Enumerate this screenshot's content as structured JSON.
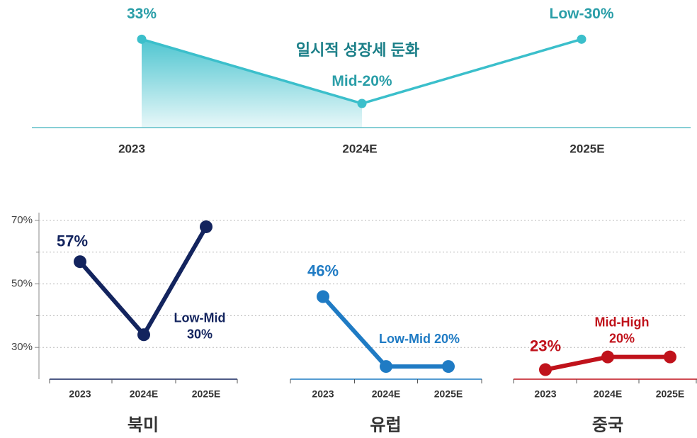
{
  "chart_data": [
    {
      "type": "line",
      "title": "일시적 성장세 둔화",
      "categories": [
        "2023",
        "2024E",
        "2025E"
      ],
      "values": [
        33,
        25,
        33
      ],
      "value_labels": [
        "33%",
        "Mid-20%",
        "Low-30%"
      ],
      "color": "#3bbfcb",
      "ylim": [
        22,
        34
      ]
    },
    {
      "type": "line",
      "title": "북미",
      "categories": [
        "2023",
        "2024E",
        "2025E"
      ],
      "values": [
        57,
        34,
        68
      ],
      "value_labels": [
        "57%",
        "Low-Mid 30%",
        null
      ],
      "color": "#13245e",
      "ylim": [
        20,
        70
      ],
      "yticks": [
        {
          "value": 30,
          "label": "30%"
        },
        {
          "value": 50,
          "label": "50%"
        },
        {
          "value": 70,
          "label": "70%"
        }
      ],
      "minor_yticks": [
        40,
        60
      ],
      "grid": true
    },
    {
      "type": "line",
      "title": "유럽",
      "categories": [
        "2023",
        "2024E",
        "2025E"
      ],
      "values": [
        46,
        24,
        24
      ],
      "value_labels": [
        "46%",
        "Low-Mid 20%",
        null
      ],
      "color": "#1f7bc4",
      "ylim": [
        20,
        70
      ]
    },
    {
      "type": "line",
      "title": "중국",
      "categories": [
        "2023",
        "2024E",
        "2025E"
      ],
      "values": [
        23,
        27,
        27
      ],
      "value_labels": [
        "23%",
        "Mid-High 20%",
        null
      ],
      "color": "#c0121b",
      "ylim": [
        20,
        70
      ]
    }
  ]
}
